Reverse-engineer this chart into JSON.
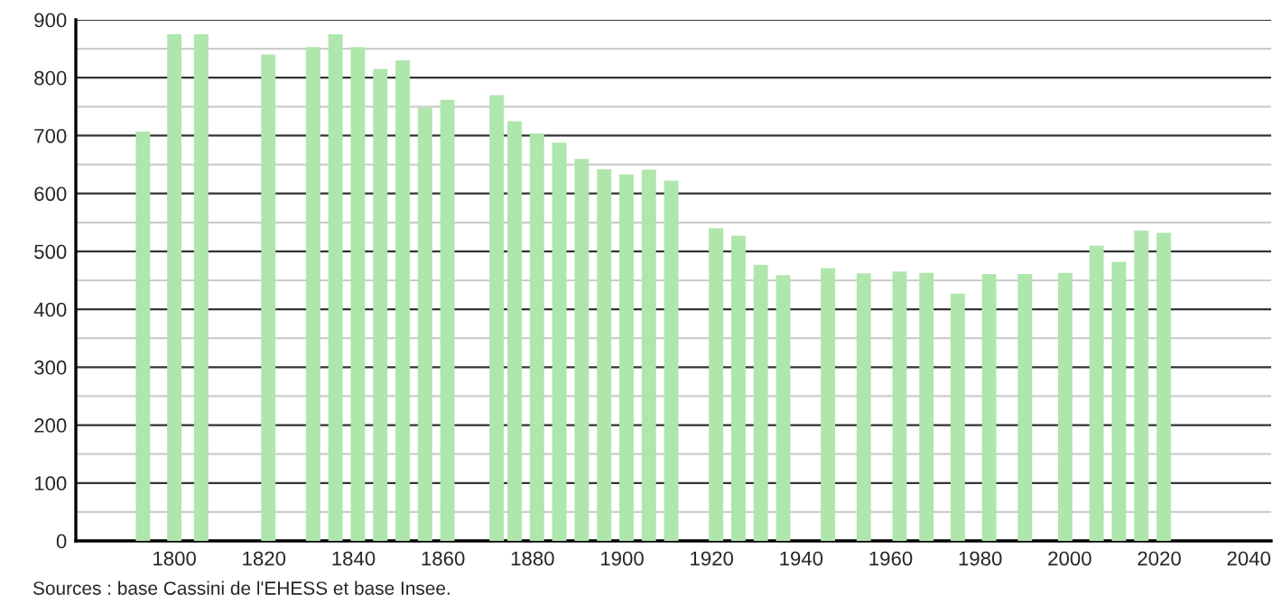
{
  "chart_data": {
    "type": "bar",
    "x": [
      1793,
      1800,
      1806,
      1821,
      1831,
      1836,
      1841,
      1846,
      1851,
      1856,
      1861,
      1872,
      1876,
      1881,
      1886,
      1891,
      1896,
      1901,
      1906,
      1911,
      1921,
      1926,
      1931,
      1936,
      1946,
      1954,
      1962,
      1968,
      1975,
      1982,
      1990,
      1999,
      2006,
      2011,
      2016,
      2021
    ],
    "values": [
      707,
      875,
      875,
      840,
      853,
      875,
      853,
      815,
      830,
      748,
      762,
      770,
      725,
      704,
      688,
      660,
      642,
      633,
      641,
      622,
      540,
      527,
      477,
      459,
      471,
      462,
      465,
      463,
      427,
      461,
      461,
      463,
      510,
      482,
      536,
      532
    ],
    "color": "#aee6ab",
    "xlim": [
      1778,
      2045
    ],
    "xticks": [
      1800,
      1820,
      1840,
      1860,
      1880,
      1900,
      1920,
      1940,
      1960,
      1980,
      2000,
      2020,
      2040
    ],
    "ylim": [
      0,
      900
    ],
    "yticks": [
      0,
      100,
      200,
      300,
      400,
      500,
      600,
      700,
      800,
      900
    ],
    "grid": "y",
    "annotations": [
      "Sources : base Cassini de l'EHESS et base Insee."
    ]
  }
}
